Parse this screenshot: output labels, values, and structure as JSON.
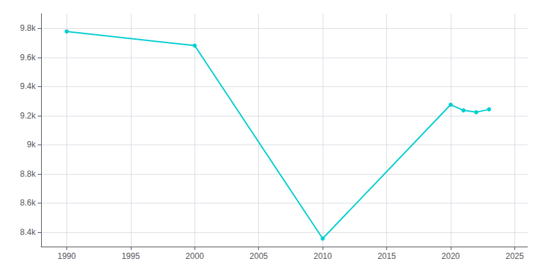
{
  "chart_data": {
    "type": "line",
    "x": [
      1990,
      2000,
      2010,
      2020,
      2021,
      2022,
      2023
    ],
    "values": [
      9778,
      9681,
      8355,
      9275,
      9236,
      9223,
      9243
    ],
    "color": "#00CED1",
    "marker": "circle",
    "xlim": [
      1988,
      2026
    ],
    "xticks": [
      1990,
      1995,
      2000,
      2005,
      2010,
      2015,
      2020,
      2025
    ],
    "ylim": [
      8300,
      9900
    ],
    "yticks": [
      {
        "value": 8400,
        "label": "8.4k"
      },
      {
        "value": 8600,
        "label": "8.6k"
      },
      {
        "value": 8800,
        "label": "8.8k"
      },
      {
        "value": 9000,
        "label": "9k"
      },
      {
        "value": 9200,
        "label": "9.2k"
      },
      {
        "value": 9400,
        "label": "9.4k"
      },
      {
        "value": 9600,
        "label": "9.6k"
      },
      {
        "value": 9800,
        "label": "9.8k"
      }
    ],
    "grid": true
  }
}
